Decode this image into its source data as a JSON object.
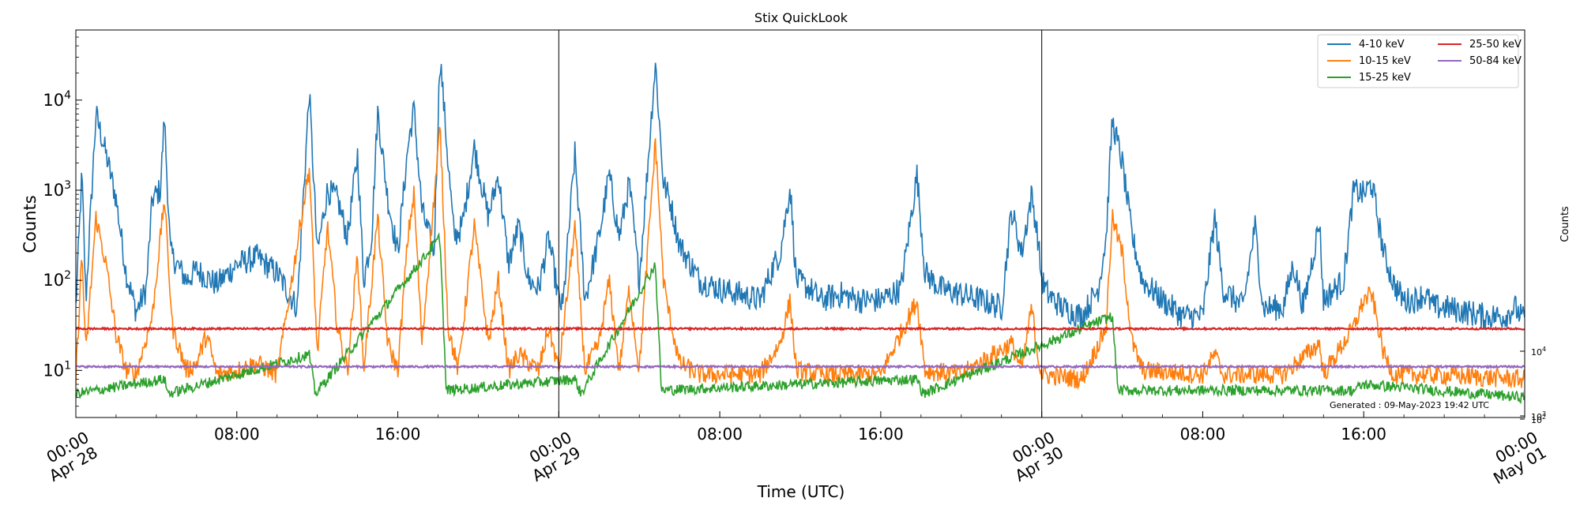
{
  "chart_data": {
    "type": "line",
    "title": "Stix QuickLook",
    "xlabel": "Time (UTC)",
    "ylabel": "Counts",
    "right_axis_label": "Counts",
    "yscale": "log",
    "ylim": [
      3,
      60000
    ],
    "xlim": [
      0,
      72
    ],
    "x_unit": "hours since Apr 28 00:00 UTC",
    "grid": false,
    "legend_position": "top-right",
    "generated_note": "Generated : 09-May-2023 19:42 UTC",
    "y_ticks": [
      {
        "value": 10,
        "base": "10",
        "exp": "1"
      },
      {
        "value": 100,
        "base": "10",
        "exp": "2"
      },
      {
        "value": 1000,
        "base": "10",
        "exp": "3"
      },
      {
        "value": 10000,
        "base": "10",
        "exp": "4"
      }
    ],
    "right_ticks": [
      {
        "label_base": "10",
        "label_exp": "4"
      },
      {
        "label_base": "10",
        "label_exp": "3"
      },
      {
        "label_base": "10",
        "label_exp": "2"
      }
    ],
    "x_ticks": [
      {
        "x": 0,
        "line1": "00:00",
        "line2": "Apr 28",
        "rotated": true
      },
      {
        "x": 8,
        "line1": "08:00",
        "line2": "",
        "rotated": false
      },
      {
        "x": 16,
        "line1": "16:00",
        "line2": "",
        "rotated": false
      },
      {
        "x": 24,
        "line1": "00:00",
        "line2": "Apr 29",
        "rotated": true
      },
      {
        "x": 32,
        "line1": "08:00",
        "line2": "",
        "rotated": false
      },
      {
        "x": 40,
        "line1": "16:00",
        "line2": "",
        "rotated": false
      },
      {
        "x": 48,
        "line1": "00:00",
        "line2": "Apr 30",
        "rotated": true
      },
      {
        "x": 56,
        "line1": "08:00",
        "line2": "",
        "rotated": false
      },
      {
        "x": 64,
        "line1": "16:00",
        "line2": "",
        "rotated": false
      },
      {
        "x": 72,
        "line1": "00:00",
        "line2": "May 01",
        "rotated": true
      }
    ],
    "day_dividers": [
      24,
      48
    ],
    "series": [
      {
        "name": "4-10 keV",
        "color": "#1f77b4",
        "noise": 0.3,
        "points": [
          [
            0,
            50
          ],
          [
            0.3,
            1500
          ],
          [
            0.5,
            60
          ],
          [
            1.0,
            7000
          ],
          [
            1.5,
            2500
          ],
          [
            2.0,
            800
          ],
          [
            2.5,
            120
          ],
          [
            3,
            45
          ],
          [
            3.5,
            80
          ],
          [
            3.8,
            800
          ],
          [
            4.2,
            1000
          ],
          [
            4.4,
            6500
          ],
          [
            4.7,
            200
          ],
          [
            5.5,
            100
          ],
          [
            6,
            130
          ],
          [
            7,
            90
          ],
          [
            8,
            150
          ],
          [
            9,
            180
          ],
          [
            10,
            120
          ],
          [
            11,
            50
          ],
          [
            11.6,
            12500
          ],
          [
            12,
            200
          ],
          [
            12.5,
            1000
          ],
          [
            13,
            800
          ],
          [
            13.5,
            300
          ],
          [
            14,
            2500
          ],
          [
            14.3,
            100
          ],
          [
            14.7,
            300
          ],
          [
            15,
            7500
          ],
          [
            15.5,
            800
          ],
          [
            16,
            200
          ],
          [
            16.5,
            3000
          ],
          [
            16.8,
            8000
          ],
          [
            17.2,
            600
          ],
          [
            17.8,
            200
          ],
          [
            18.1,
            32000
          ],
          [
            18.5,
            2000
          ],
          [
            18.8,
            300
          ],
          [
            19.2,
            400
          ],
          [
            19.8,
            3000
          ],
          [
            20.5,
            500
          ],
          [
            21,
            1500
          ],
          [
            21.5,
            150
          ],
          [
            22,
            400
          ],
          [
            22.5,
            100
          ],
          [
            23,
            80
          ],
          [
            23.5,
            300
          ],
          [
            24,
            60
          ],
          [
            24.2,
            50
          ],
          [
            24.8,
            2500
          ],
          [
            25.3,
            60
          ],
          [
            26,
            300
          ],
          [
            26.5,
            1500
          ],
          [
            27,
            300
          ],
          [
            27.5,
            1200
          ],
          [
            28,
            100
          ],
          [
            28.8,
            26000
          ],
          [
            29.2,
            1200
          ],
          [
            29.5,
            800
          ],
          [
            30,
            250
          ],
          [
            31,
            100
          ],
          [
            32,
            80
          ],
          [
            33,
            70
          ],
          [
            34,
            60
          ],
          [
            34.7,
            150
          ],
          [
            35,
            200
          ],
          [
            35.5,
            1100
          ],
          [
            35.8,
            100
          ],
          [
            36.5,
            80
          ],
          [
            37,
            60
          ],
          [
            38,
            70
          ],
          [
            39,
            60
          ],
          [
            40,
            60
          ],
          [
            41,
            80
          ],
          [
            41.8,
            1500
          ],
          [
            42.2,
            120
          ],
          [
            43,
            80
          ],
          [
            44,
            70
          ],
          [
            45,
            60
          ],
          [
            46,
            50
          ],
          [
            46.5,
            600
          ],
          [
            47,
            200
          ],
          [
            47.5,
            900
          ],
          [
            47.8,
            300
          ],
          [
            48,
            100
          ],
          [
            48.3,
            70
          ],
          [
            49,
            50
          ],
          [
            50,
            40
          ],
          [
            50.8,
            80
          ],
          [
            51.2,
            300
          ],
          [
            51.5,
            6000
          ],
          [
            52,
            2000
          ],
          [
            52.5,
            300
          ],
          [
            53,
            100
          ],
          [
            54,
            60
          ],
          [
            55,
            40
          ],
          [
            56,
            40
          ],
          [
            56.6,
            500
          ],
          [
            57,
            80
          ],
          [
            58,
            50
          ],
          [
            58.6,
            400
          ],
          [
            59,
            50
          ],
          [
            60,
            50
          ],
          [
            60.5,
            150
          ],
          [
            61,
            50
          ],
          [
            61.8,
            450
          ],
          [
            62,
            60
          ],
          [
            63,
            100
          ],
          [
            63.5,
            1000
          ],
          [
            64,
            900
          ],
          [
            64.4,
            1200
          ],
          [
            65,
            200
          ],
          [
            65.5,
            90
          ],
          [
            66,
            60
          ],
          [
            66.5,
            60
          ],
          [
            67,
            70
          ],
          [
            67.5,
            50
          ],
          [
            68,
            50
          ],
          [
            69,
            45
          ],
          [
            70,
            40
          ],
          [
            71,
            40
          ],
          [
            71.5,
            50
          ],
          [
            72,
            35
          ]
        ]
      },
      {
        "name": "10-15 keV",
        "color": "#ff7f0e",
        "noise": 0.22,
        "points": [
          [
            0,
            8
          ],
          [
            0.3,
            200
          ],
          [
            0.5,
            15
          ],
          [
            1.0,
            500
          ],
          [
            1.5,
            150
          ],
          [
            2,
            25
          ],
          [
            2.5,
            10
          ],
          [
            3,
            9
          ],
          [
            3.8,
            40
          ],
          [
            4.4,
            800
          ],
          [
            4.8,
            30
          ],
          [
            5.5,
            10
          ],
          [
            6,
            12
          ],
          [
            6.5,
            25
          ],
          [
            7,
            9
          ],
          [
            8,
            10
          ],
          [
            9,
            12
          ],
          [
            10,
            9
          ],
          [
            11.6,
            1800
          ],
          [
            12,
            15
          ],
          [
            12.5,
            400
          ],
          [
            13,
            30
          ],
          [
            13.5,
            10
          ],
          [
            14,
            200
          ],
          [
            14.3,
            10
          ],
          [
            15,
            500
          ],
          [
            15.5,
            20
          ],
          [
            16,
            10
          ],
          [
            16.5,
            300
          ],
          [
            16.8,
            900
          ],
          [
            17.2,
            20
          ],
          [
            18.1,
            5000
          ],
          [
            18.5,
            30
          ],
          [
            19,
            10
          ],
          [
            19.8,
            400
          ],
          [
            20.5,
            20
          ],
          [
            21,
            100
          ],
          [
            21.5,
            10
          ],
          [
            22,
            15
          ],
          [
            23,
            10
          ],
          [
            23.5,
            30
          ],
          [
            24,
            10
          ],
          [
            24.8,
            400
          ],
          [
            25.3,
            10
          ],
          [
            26,
            20
          ],
          [
            26.5,
            100
          ],
          [
            27,
            10
          ],
          [
            27.5,
            80
          ],
          [
            28,
            10
          ],
          [
            28.8,
            3500
          ],
          [
            29.2,
            100
          ],
          [
            29.5,
            40
          ],
          [
            30,
            12
          ],
          [
            31,
            9
          ],
          [
            32,
            9
          ],
          [
            34,
            9
          ],
          [
            35,
            20
          ],
          [
            35.5,
            60
          ],
          [
            35.8,
            10
          ],
          [
            37,
            9
          ],
          [
            40,
            9
          ],
          [
            41.8,
            60
          ],
          [
            42.2,
            10
          ],
          [
            44,
            9
          ],
          [
            46.5,
            20
          ],
          [
            47,
            10
          ],
          [
            47.5,
            50
          ],
          [
            47.8,
            15
          ],
          [
            48,
            9
          ],
          [
            50,
            8
          ],
          [
            51.2,
            30
          ],
          [
            51.5,
            500
          ],
          [
            52,
            200
          ],
          [
            52.5,
            20
          ],
          [
            53,
            10
          ],
          [
            56,
            9
          ],
          [
            56.6,
            15
          ],
          [
            57,
            9
          ],
          [
            60,
            9
          ],
          [
            61.8,
            20
          ],
          [
            62,
            9
          ],
          [
            63.5,
            30
          ],
          [
            64,
            60
          ],
          [
            64.4,
            70
          ],
          [
            65,
            15
          ],
          [
            65.5,
            9
          ],
          [
            67,
            9
          ],
          [
            72,
            8
          ]
        ]
      },
      {
        "name": "15-25 keV",
        "color": "#2ca02c",
        "noise": 0.12,
        "points": [
          [
            0,
            5.5
          ],
          [
            4.4,
            8
          ],
          [
            4.6,
            5.5
          ],
          [
            11.6,
            15
          ],
          [
            11.9,
            5.5
          ],
          [
            18.1,
            300
          ],
          [
            18.4,
            6
          ],
          [
            24.8,
            8
          ],
          [
            25.1,
            5.5
          ],
          [
            28.8,
            150
          ],
          [
            29.1,
            6
          ],
          [
            41.8,
            8
          ],
          [
            42.1,
            5.5
          ],
          [
            51.5,
            40
          ],
          [
            51.8,
            6
          ],
          [
            61.8,
            6
          ],
          [
            63.5,
            6
          ],
          [
            64,
            7
          ],
          [
            72,
            5
          ]
        ]
      },
      {
        "name": "25-50 keV",
        "color": "#d62728",
        "noise": 0.02,
        "points": [
          [
            0,
            29
          ],
          [
            72,
            29
          ]
        ]
      },
      {
        "name": "50-84 keV",
        "color": "#9467bd",
        "noise": 0.02,
        "points": [
          [
            0,
            11
          ],
          [
            72,
            11
          ]
        ]
      }
    ]
  }
}
